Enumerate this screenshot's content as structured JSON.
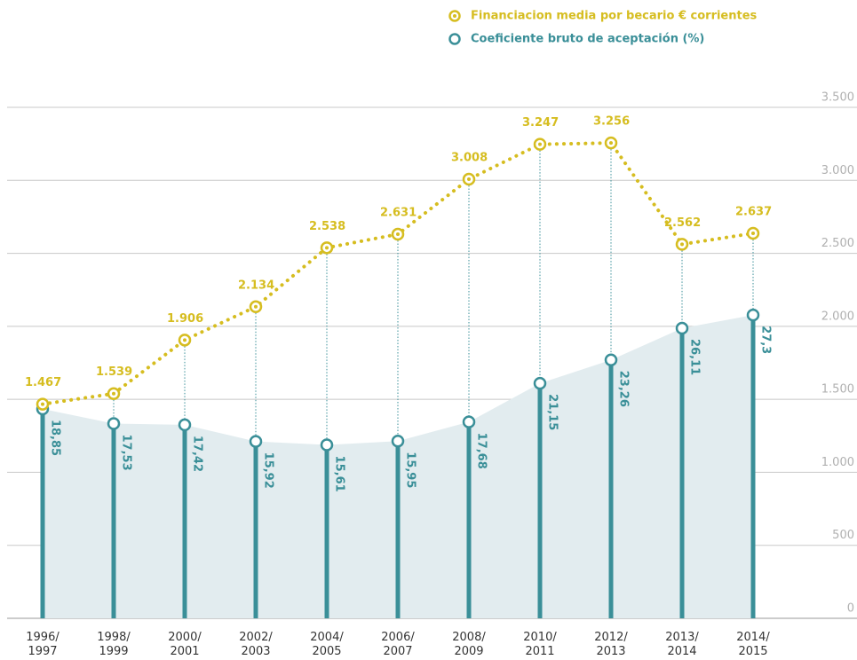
{
  "chart_data": {
    "type": "line",
    "categories": [
      "1996/1997",
      "1998/1999",
      "2000/2001",
      "2002/2003",
      "2004/2005",
      "2006/2007",
      "2008/2009",
      "2010/2011",
      "2012/2013",
      "2013/2014",
      "2014/2015"
    ],
    "series": [
      {
        "name": "Financiacion media por becario € corrientes",
        "color": "#d6bd20",
        "values": [
          1467,
          1539,
          1906,
          2134,
          2538,
          2631,
          3008,
          3247,
          3256,
          2562,
          2637
        ],
        "value_labels": [
          "1.467",
          "1.539",
          "1.906",
          "2.134",
          "2.538",
          "2.631",
          "3.008",
          "3.247",
          "3.256",
          "2.562",
          "2.637"
        ]
      },
      {
        "name": "Coeficiente bruto de aceptación (%)",
        "color": "#3a8f98",
        "axis": "y2",
        "values": [
          18.85,
          17.53,
          17.42,
          15.92,
          15.61,
          15.95,
          17.68,
          21.15,
          23.26,
          26.11,
          27.3
        ],
        "value_labels": [
          "18,85",
          "17,53",
          "17,42",
          "15,92",
          "15,61",
          "15,95",
          "17,68",
          "21,15",
          "23,26",
          "26,11",
          "27,3"
        ]
      }
    ],
    "ylim": [
      0,
      3500
    ],
    "yticks": [
      0,
      500,
      {
        "value": 1000,
        "label": "1.000"
      },
      {
        "value": 1500,
        "label": "1.500"
      },
      {
        "value": 2000,
        "label": "2.000"
      },
      {
        "value": 2500,
        "label": "2.500"
      },
      {
        "value": 3000,
        "label": "3.000"
      },
      {
        "value": 3500,
        "label": "3.500"
      }
    ],
    "y2lim": [
      0,
      46
    ],
    "grid": true,
    "legend": "top"
  }
}
